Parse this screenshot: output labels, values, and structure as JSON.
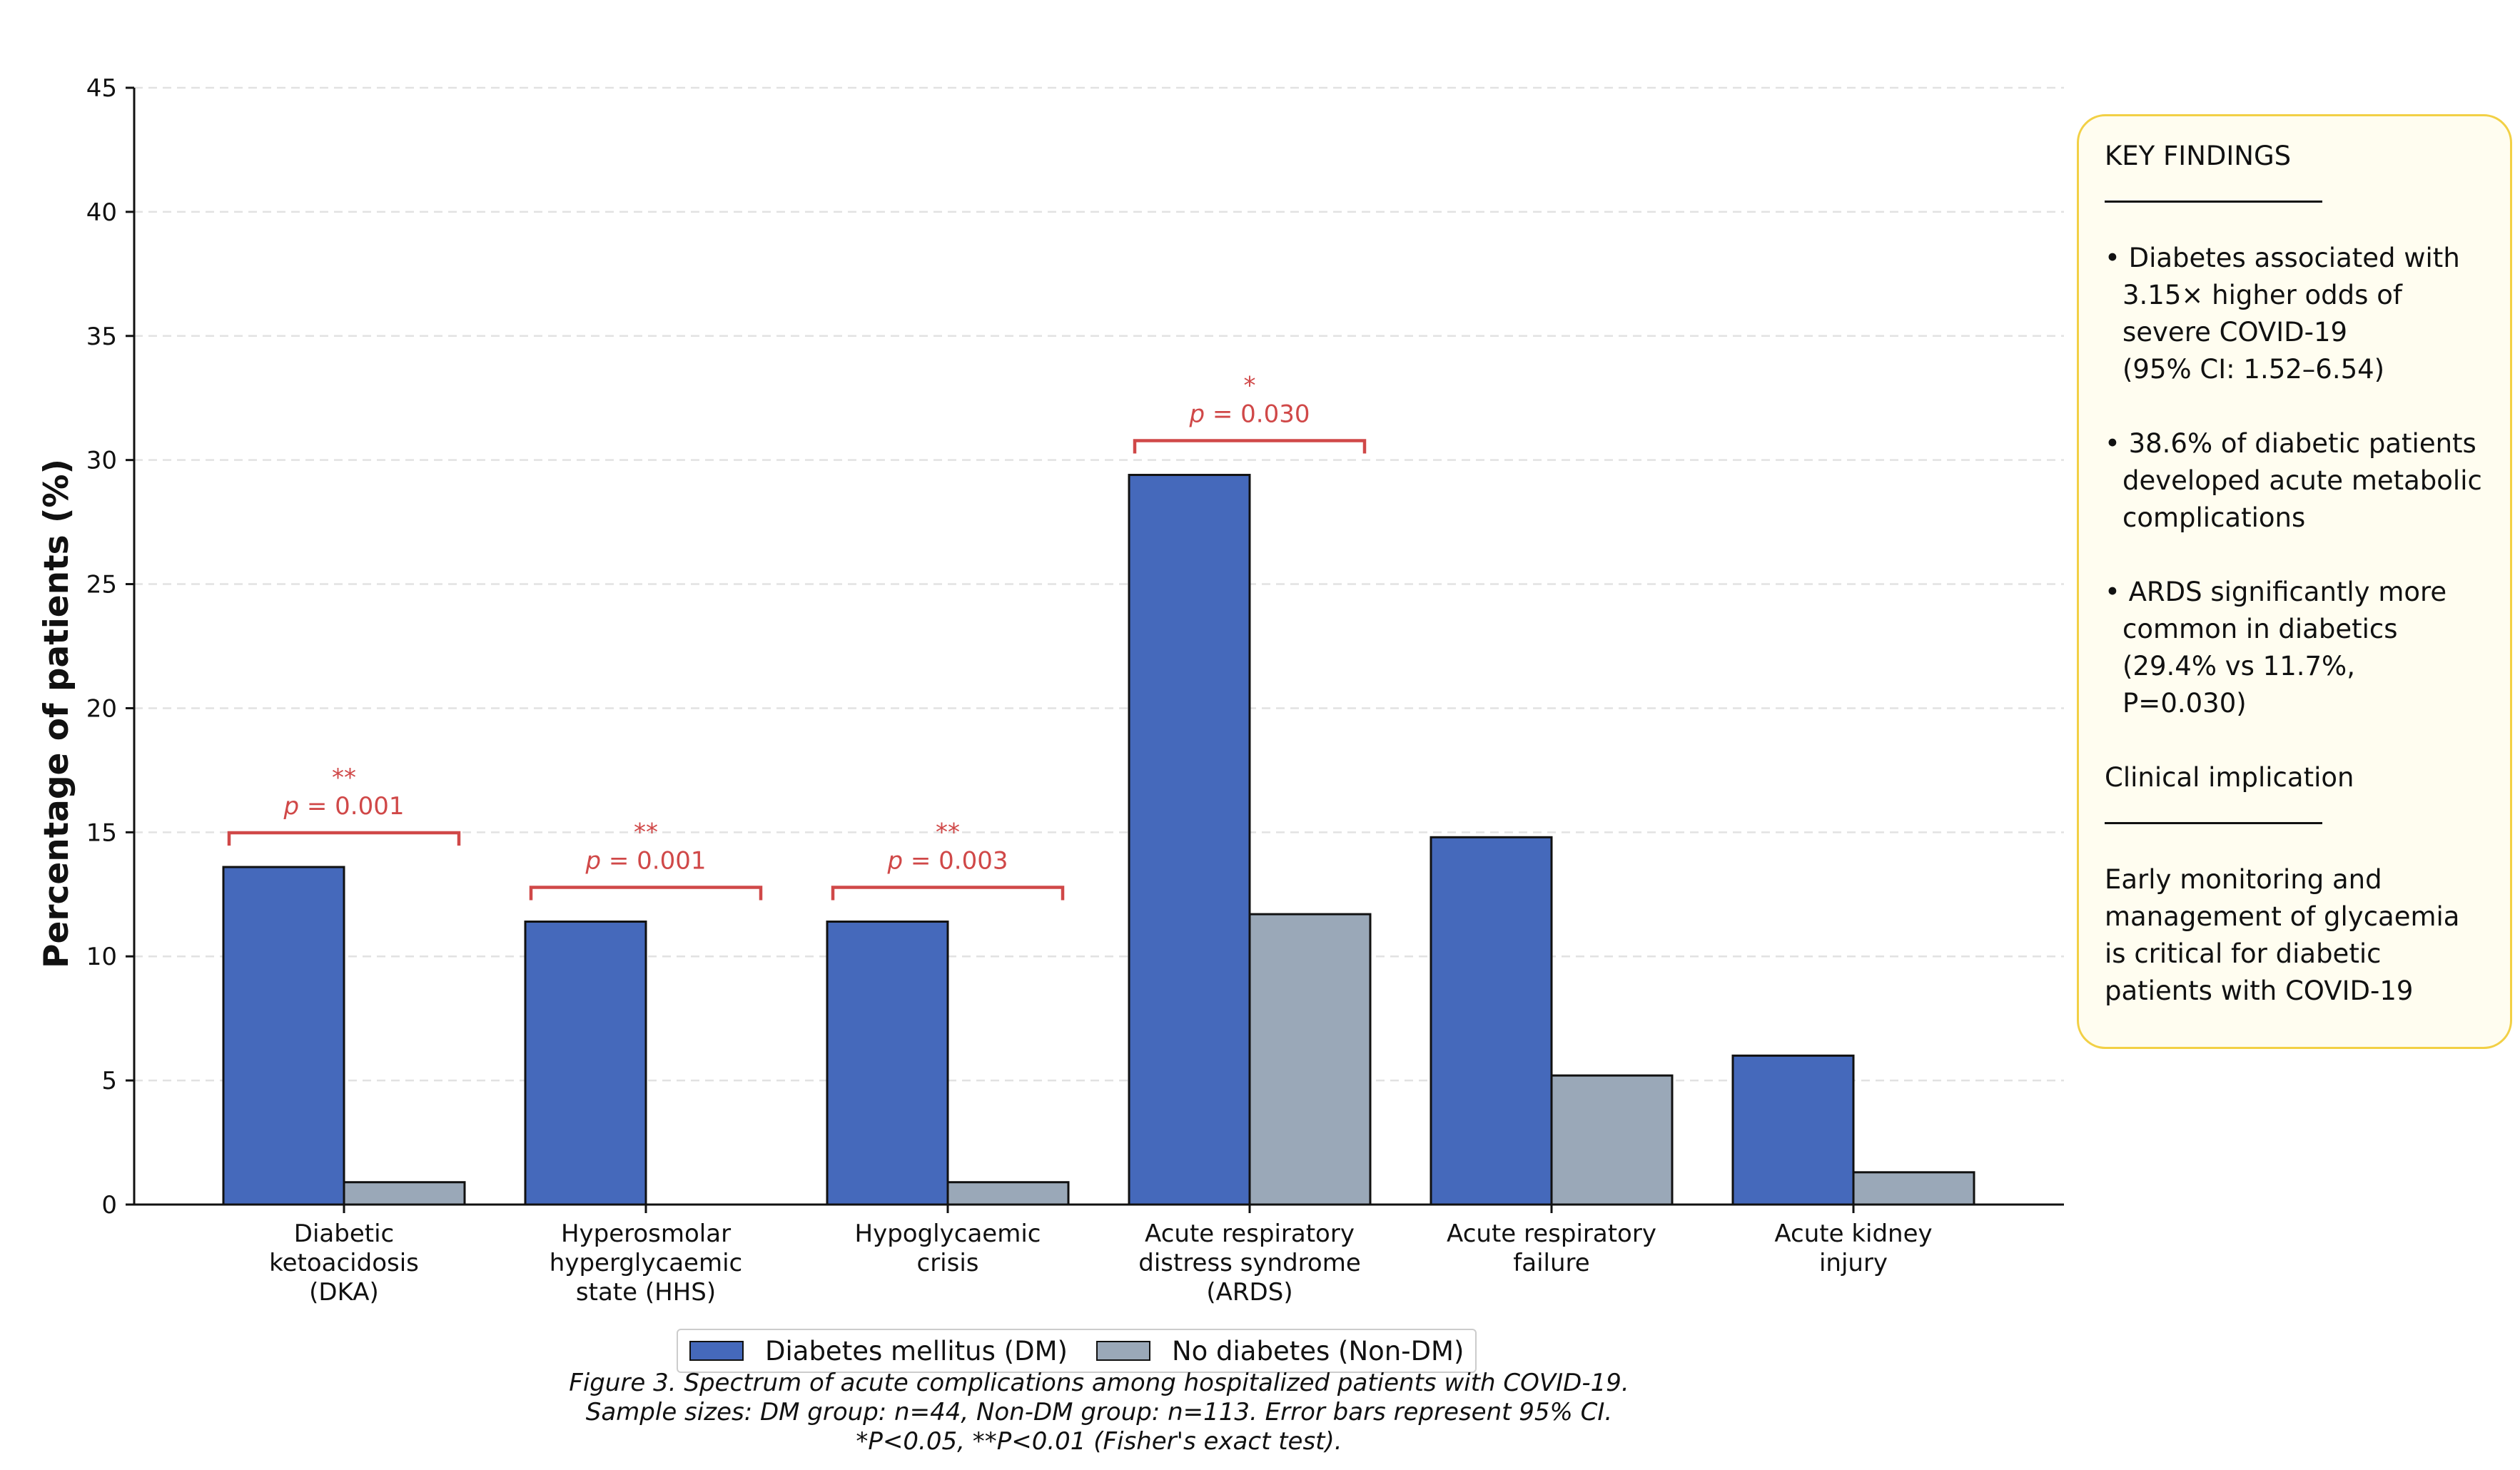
{
  "chart_data": {
    "type": "bar",
    "ylabel": "Percentage of patients (%)",
    "ylim": [
      0,
      45
    ],
    "yticks": [
      0,
      5,
      10,
      15,
      20,
      25,
      30,
      35,
      40,
      45
    ],
    "categories": [
      [
        "Diabetic",
        "ketoacidosis",
        "(DKA)"
      ],
      [
        "Hyperosmolar",
        "hyperglycaemic",
        "state (HHS)"
      ],
      [
        "Hypoglycaemic",
        "crisis"
      ],
      [
        "Acute respiratory",
        "distress syndrome",
        "(ARDS)"
      ],
      [
        "Acute respiratory",
        "failure"
      ],
      [
        "Acute kidney",
        "injury"
      ]
    ],
    "series": [
      {
        "name": "Diabetes mellitus (DM)",
        "color": "#4569bb",
        "values": [
          13.6,
          11.4,
          11.4,
          29.4,
          14.8,
          6.0
        ]
      },
      {
        "name": "No diabetes (Non-DM)",
        "color": "#9aa8b8",
        "values": [
          0.9,
          0.0,
          0.9,
          11.7,
          5.2,
          1.3
        ]
      }
    ],
    "significance": [
      {
        "category_index": 0,
        "stars": "**",
        "p_label": "p",
        "p_value": "= 0.001"
      },
      {
        "category_index": 1,
        "stars": "**",
        "p_label": "p",
        "p_value": "= 0.001"
      },
      {
        "category_index": 2,
        "stars": "**",
        "p_label": "p",
        "p_value": "= 0.003"
      },
      {
        "category_index": 3,
        "stars": "*",
        "p_label": "p",
        "p_value": "= 0.030"
      }
    ],
    "significance_color": "#d04848",
    "grid": "horizontal dashed",
    "legend_position": "bottom-center"
  },
  "findings": {
    "title": "KEY FINDINGS",
    "bullets": [
      {
        "first": "• Diabetes associated with",
        "rest": [
          "3.15× higher odds of",
          "severe COVID-19",
          "(95% CI: 1.52–6.54)"
        ]
      },
      {
        "first": "• 38.6% of diabetic patients",
        "rest": [
          "developed acute metabolic",
          "complications"
        ]
      },
      {
        "first": "• ARDS significantly more",
        "rest": [
          "common in diabetics",
          "(29.4% vs 11.7%,",
          "P=0.030)"
        ]
      }
    ],
    "subtitle": "Clinical implication",
    "implication": [
      "Early monitoring and",
      "management of glycaemia",
      "is critical for diabetic",
      "patients with COVID-19"
    ]
  },
  "caption": {
    "line1": "Figure 3. Spectrum of acute complications among hospitalized patients with COVID-19.",
    "line2": "Sample sizes: DM group: n=44, Non-DM group: n=113. Error bars represent 95% CI.",
    "line3": "*P<0.05, **P<0.01 (Fisher's exact test)."
  }
}
